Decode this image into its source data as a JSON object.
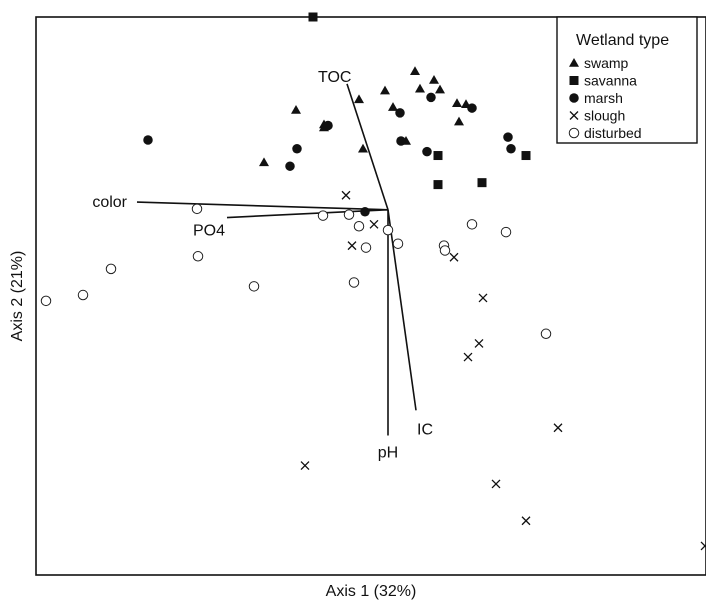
{
  "chart_data": {
    "type": "scatter",
    "title": "",
    "xlabel": "Axis 1 (32%)",
    "ylabel": "Axis 2 (21%)",
    "xlim": [
      0,
      670
    ],
    "ylim": [
      -576,
      0
    ],
    "grid": false,
    "legend": {
      "title": "Wetland type",
      "placement": "top-right",
      "entries": [
        {
          "name": "swamp",
          "marker": "triangle"
        },
        {
          "name": "savanna",
          "marker": "square"
        },
        {
          "name": "marsh",
          "marker": "circle-filled"
        },
        {
          "name": "slough",
          "marker": "x"
        },
        {
          "name": "disturbed",
          "marker": "circle-open"
        }
      ]
    },
    "series": [
      {
        "name": "swamp",
        "marker": "triangle",
        "points": [
          [
            260,
            -96
          ],
          [
            228,
            -150
          ],
          [
            379,
            -56
          ],
          [
            398,
            -65
          ],
          [
            384,
            -74
          ],
          [
            349,
            -76
          ],
          [
            323,
            -85
          ],
          [
            357,
            -93
          ],
          [
            404,
            -75
          ],
          [
            421,
            -89
          ],
          [
            430,
            -90
          ],
          [
            423,
            -108
          ],
          [
            288,
            -111
          ],
          [
            327,
            -136
          ],
          [
            288,
            -114
          ],
          [
            370,
            -128
          ]
        ]
      },
      {
        "name": "savanna",
        "marker": "square",
        "points": [
          [
            277,
            0
          ],
          [
            402,
            -143
          ],
          [
            490,
            -143
          ],
          [
            446,
            -171
          ],
          [
            402,
            -173
          ]
        ]
      },
      {
        "name": "marsh",
        "marker": "circle-filled",
        "points": [
          [
            112,
            -127
          ],
          [
            261,
            -136
          ],
          [
            254,
            -154
          ],
          [
            292,
            -112
          ],
          [
            395,
            -83
          ],
          [
            364,
            -99
          ],
          [
            436,
            -94
          ],
          [
            365,
            -128
          ],
          [
            472,
            -124
          ],
          [
            475,
            -136
          ],
          [
            391,
            -139
          ],
          [
            329,
            -201
          ]
        ]
      },
      {
        "name": "slough",
        "marker": "x",
        "points": [
          [
            310,
            -184
          ],
          [
            338,
            -214
          ],
          [
            316,
            -236
          ],
          [
            418,
            -248
          ],
          [
            447,
            -290
          ],
          [
            443,
            -337
          ],
          [
            432,
            -351
          ],
          [
            522,
            -424
          ],
          [
            269,
            -463
          ],
          [
            460,
            -482
          ],
          [
            490,
            -520
          ]
        ]
      },
      {
        "name": "disturbed",
        "marker": "circle-open",
        "points": [
          [
            10,
            -293
          ],
          [
            47,
            -287
          ],
          [
            75,
            -260
          ],
          [
            161,
            -198
          ],
          [
            162,
            -247
          ],
          [
            218,
            -278
          ],
          [
            287,
            -205
          ],
          [
            313,
            -204
          ],
          [
            323,
            -216
          ],
          [
            330,
            -238
          ],
          [
            352,
            -220
          ],
          [
            362,
            -234
          ],
          [
            318,
            -274
          ],
          [
            408,
            -236
          ],
          [
            409,
            -241
          ],
          [
            436,
            -214
          ],
          [
            470,
            -222
          ],
          [
            510,
            -327
          ]
        ]
      }
    ],
    "vectors": [
      {
        "label": "TOC",
        "x": 311,
        "y": -69
      },
      {
        "label": "color",
        "x": 101,
        "y": -191
      },
      {
        "label": "PO4",
        "x": 191,
        "y": -207
      },
      {
        "label": "pH",
        "x": 352,
        "y": -432
      },
      {
        "label": "IC",
        "x": 380,
        "y": -406
      }
    ],
    "vector_origin": [
      352,
      -199
    ],
    "stray_marks": [
      {
        "marker": "x",
        "x": 669,
        "y": -546
      }
    ]
  }
}
